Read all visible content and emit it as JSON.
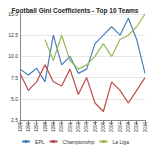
{
  "chart_data": {
    "type": "line",
    "title": "Football Gini Coefficients - Top 10 Teams",
    "categories": [
      "1995",
      "1996",
      "1997",
      "1998",
      "1999",
      "2000",
      "2001",
      "2002",
      "2003",
      "2004",
      "2005",
      "2006",
      "2007",
      "2008",
      "2009",
      "2010"
    ],
    "series": [
      {
        "name": "EPL",
        "color": "#4a7ebb",
        "values": [
          8.5,
          7.8,
          8.6,
          7.0,
          12.5,
          9.0,
          10.0,
          8.0,
          8.5,
          11.5,
          12.5,
          13.5,
          12.5,
          14.5,
          12.0,
          8.0
        ]
      },
      {
        "name": "Championship",
        "color": "#be4b48",
        "values": [
          8.0,
          6.0,
          7.0,
          9.0,
          7.0,
          6.5,
          8.5,
          5.5,
          7.5,
          4.5,
          3.5,
          7.0,
          6.0,
          4.5,
          6.0,
          7.5
        ]
      },
      {
        "name": "La Liga",
        "color": "#98b954",
        "values": [
          null,
          null,
          null,
          12.0,
          9.5,
          12.5,
          9.5,
          8.5,
          9.0,
          10.0,
          11.5,
          10.0,
          12.0,
          12.5,
          13.5,
          15.0
        ]
      }
    ],
    "ylim": [
      2.5,
      15
    ],
    "yticks": [
      {
        "value": 2.5,
        "label": "2.5"
      },
      {
        "value": 5,
        "label": "5.0"
      },
      {
        "value": 7.5,
        "label": "7.5"
      },
      {
        "value": 10,
        "label": "10.0"
      },
      {
        "value": 12.5,
        "label": "12.5"
      },
      {
        "value": 15,
        "label": "15.0"
      }
    ],
    "grid": true,
    "legend": "bottom"
  }
}
